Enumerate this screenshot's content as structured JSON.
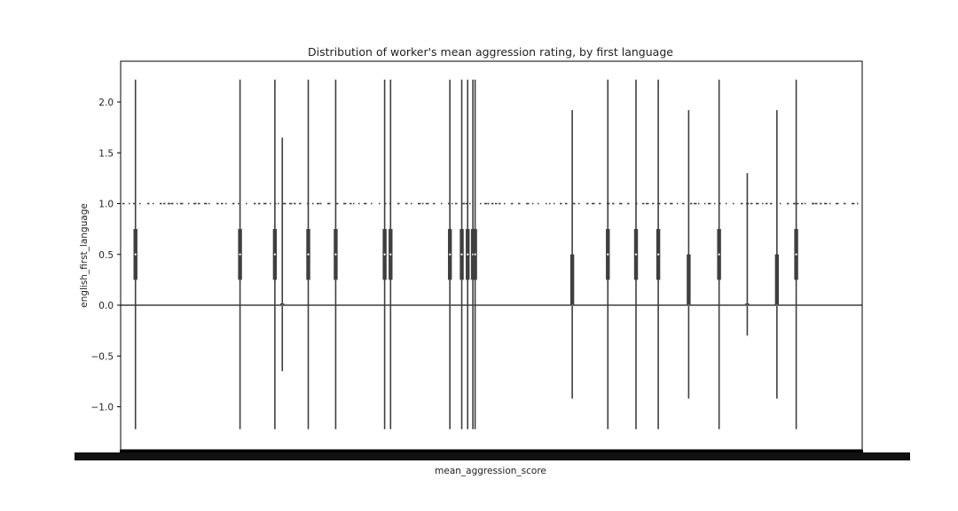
{
  "chart_data": {
    "type": "violin",
    "title": "Distribution of worker's mean aggression rating, by first language",
    "xlabel": "mean_aggression_score",
    "ylabel": "english_first_language",
    "ylim": [
      -1.35,
      2.4
    ],
    "yticks": [
      2.0,
      1.5,
      1.0,
      0.5,
      0.0,
      -0.5,
      -1.0
    ],
    "ytick_labels": [
      "2.0",
      "1.5",
      "1.0",
      "0.5",
      "0.0",
      "−0.5",
      "−1.0"
    ],
    "grid": false,
    "legend": "none",
    "x_tick_labels": "overlapping and unreadable (hundreds of categories)",
    "violins": [
      {
        "x_frac": 0.02,
        "ymin": -1.22,
        "ymax": 2.22,
        "q1": 0.25,
        "q3": 0.75,
        "median": 0.5
      },
      {
        "x_frac": 0.161,
        "ymin": -1.22,
        "ymax": 2.22,
        "q1": 0.25,
        "q3": 0.75,
        "median": 0.5
      },
      {
        "x_frac": 0.208,
        "ymin": -1.22,
        "ymax": 2.22,
        "q1": 0.25,
        "q3": 0.75,
        "median": 0.5
      },
      {
        "x_frac": 0.218,
        "ymin": -0.65,
        "ymax": 1.65,
        "q1": 0.0,
        "q3": 0.0,
        "median": 0.0
      },
      {
        "x_frac": 0.253,
        "ymin": -1.22,
        "ymax": 2.22,
        "q1": 0.25,
        "q3": 0.75,
        "median": 0.5
      },
      {
        "x_frac": 0.29,
        "ymin": -1.22,
        "ymax": 2.22,
        "q1": 0.25,
        "q3": 0.75,
        "median": 0.5
      },
      {
        "x_frac": 0.356,
        "ymin": -1.22,
        "ymax": 2.22,
        "q1": 0.25,
        "q3": 0.75,
        "median": 0.5
      },
      {
        "x_frac": 0.364,
        "ymin": -1.22,
        "ymax": 2.22,
        "q1": 0.25,
        "q3": 0.75,
        "median": 0.5
      },
      {
        "x_frac": 0.444,
        "ymin": -1.22,
        "ymax": 2.22,
        "q1": 0.25,
        "q3": 0.75,
        "median": 0.5
      },
      {
        "x_frac": 0.46,
        "ymin": -1.22,
        "ymax": 2.22,
        "q1": 0.25,
        "q3": 0.75,
        "median": 0.5
      },
      {
        "x_frac": 0.468,
        "ymin": -1.22,
        "ymax": 2.22,
        "q1": 0.25,
        "q3": 0.75,
        "median": 0.5
      },
      {
        "x_frac": 0.475,
        "ymin": -1.22,
        "ymax": 2.22,
        "q1": 0.25,
        "q3": 0.75,
        "median": 0.5
      },
      {
        "x_frac": 0.478,
        "ymin": -1.22,
        "ymax": 2.22,
        "q1": 0.25,
        "q3": 0.75,
        "median": 0.5
      },
      {
        "x_frac": 0.609,
        "ymin": -0.92,
        "ymax": 1.92,
        "q1": 0.0,
        "q3": 0.5,
        "median": 0.0
      },
      {
        "x_frac": 0.657,
        "ymin": -1.22,
        "ymax": 2.22,
        "q1": 0.25,
        "q3": 0.75,
        "median": 0.5
      },
      {
        "x_frac": 0.695,
        "ymin": -1.22,
        "ymax": 2.22,
        "q1": 0.25,
        "q3": 0.75,
        "median": 0.5
      },
      {
        "x_frac": 0.725,
        "ymin": -1.22,
        "ymax": 2.22,
        "q1": 0.25,
        "q3": 0.75,
        "median": 0.5
      },
      {
        "x_frac": 0.766,
        "ymin": -0.92,
        "ymax": 1.92,
        "q1": 0.0,
        "q3": 0.5,
        "median": 0.0
      },
      {
        "x_frac": 0.807,
        "ymin": -1.22,
        "ymax": 2.22,
        "q1": 0.25,
        "q3": 0.75,
        "median": 0.5
      },
      {
        "x_frac": 0.845,
        "ymin": -0.3,
        "ymax": 1.3,
        "q1": 0.0,
        "q3": 0.0,
        "median": 0.0
      },
      {
        "x_frac": 0.885,
        "ymin": -0.92,
        "ymax": 1.92,
        "q1": 0.0,
        "q3": 0.5,
        "median": 0.0
      },
      {
        "x_frac": 0.911,
        "ymin": -1.22,
        "ymax": 2.22,
        "q1": 0.25,
        "q3": 0.75,
        "median": 0.5
      }
    ],
    "flat_levels": [
      0.0,
      1.0
    ]
  },
  "colors": {
    "line": "#3f3f3f",
    "axis": "#000000",
    "text": "#222222",
    "background": "#ffffff"
  }
}
